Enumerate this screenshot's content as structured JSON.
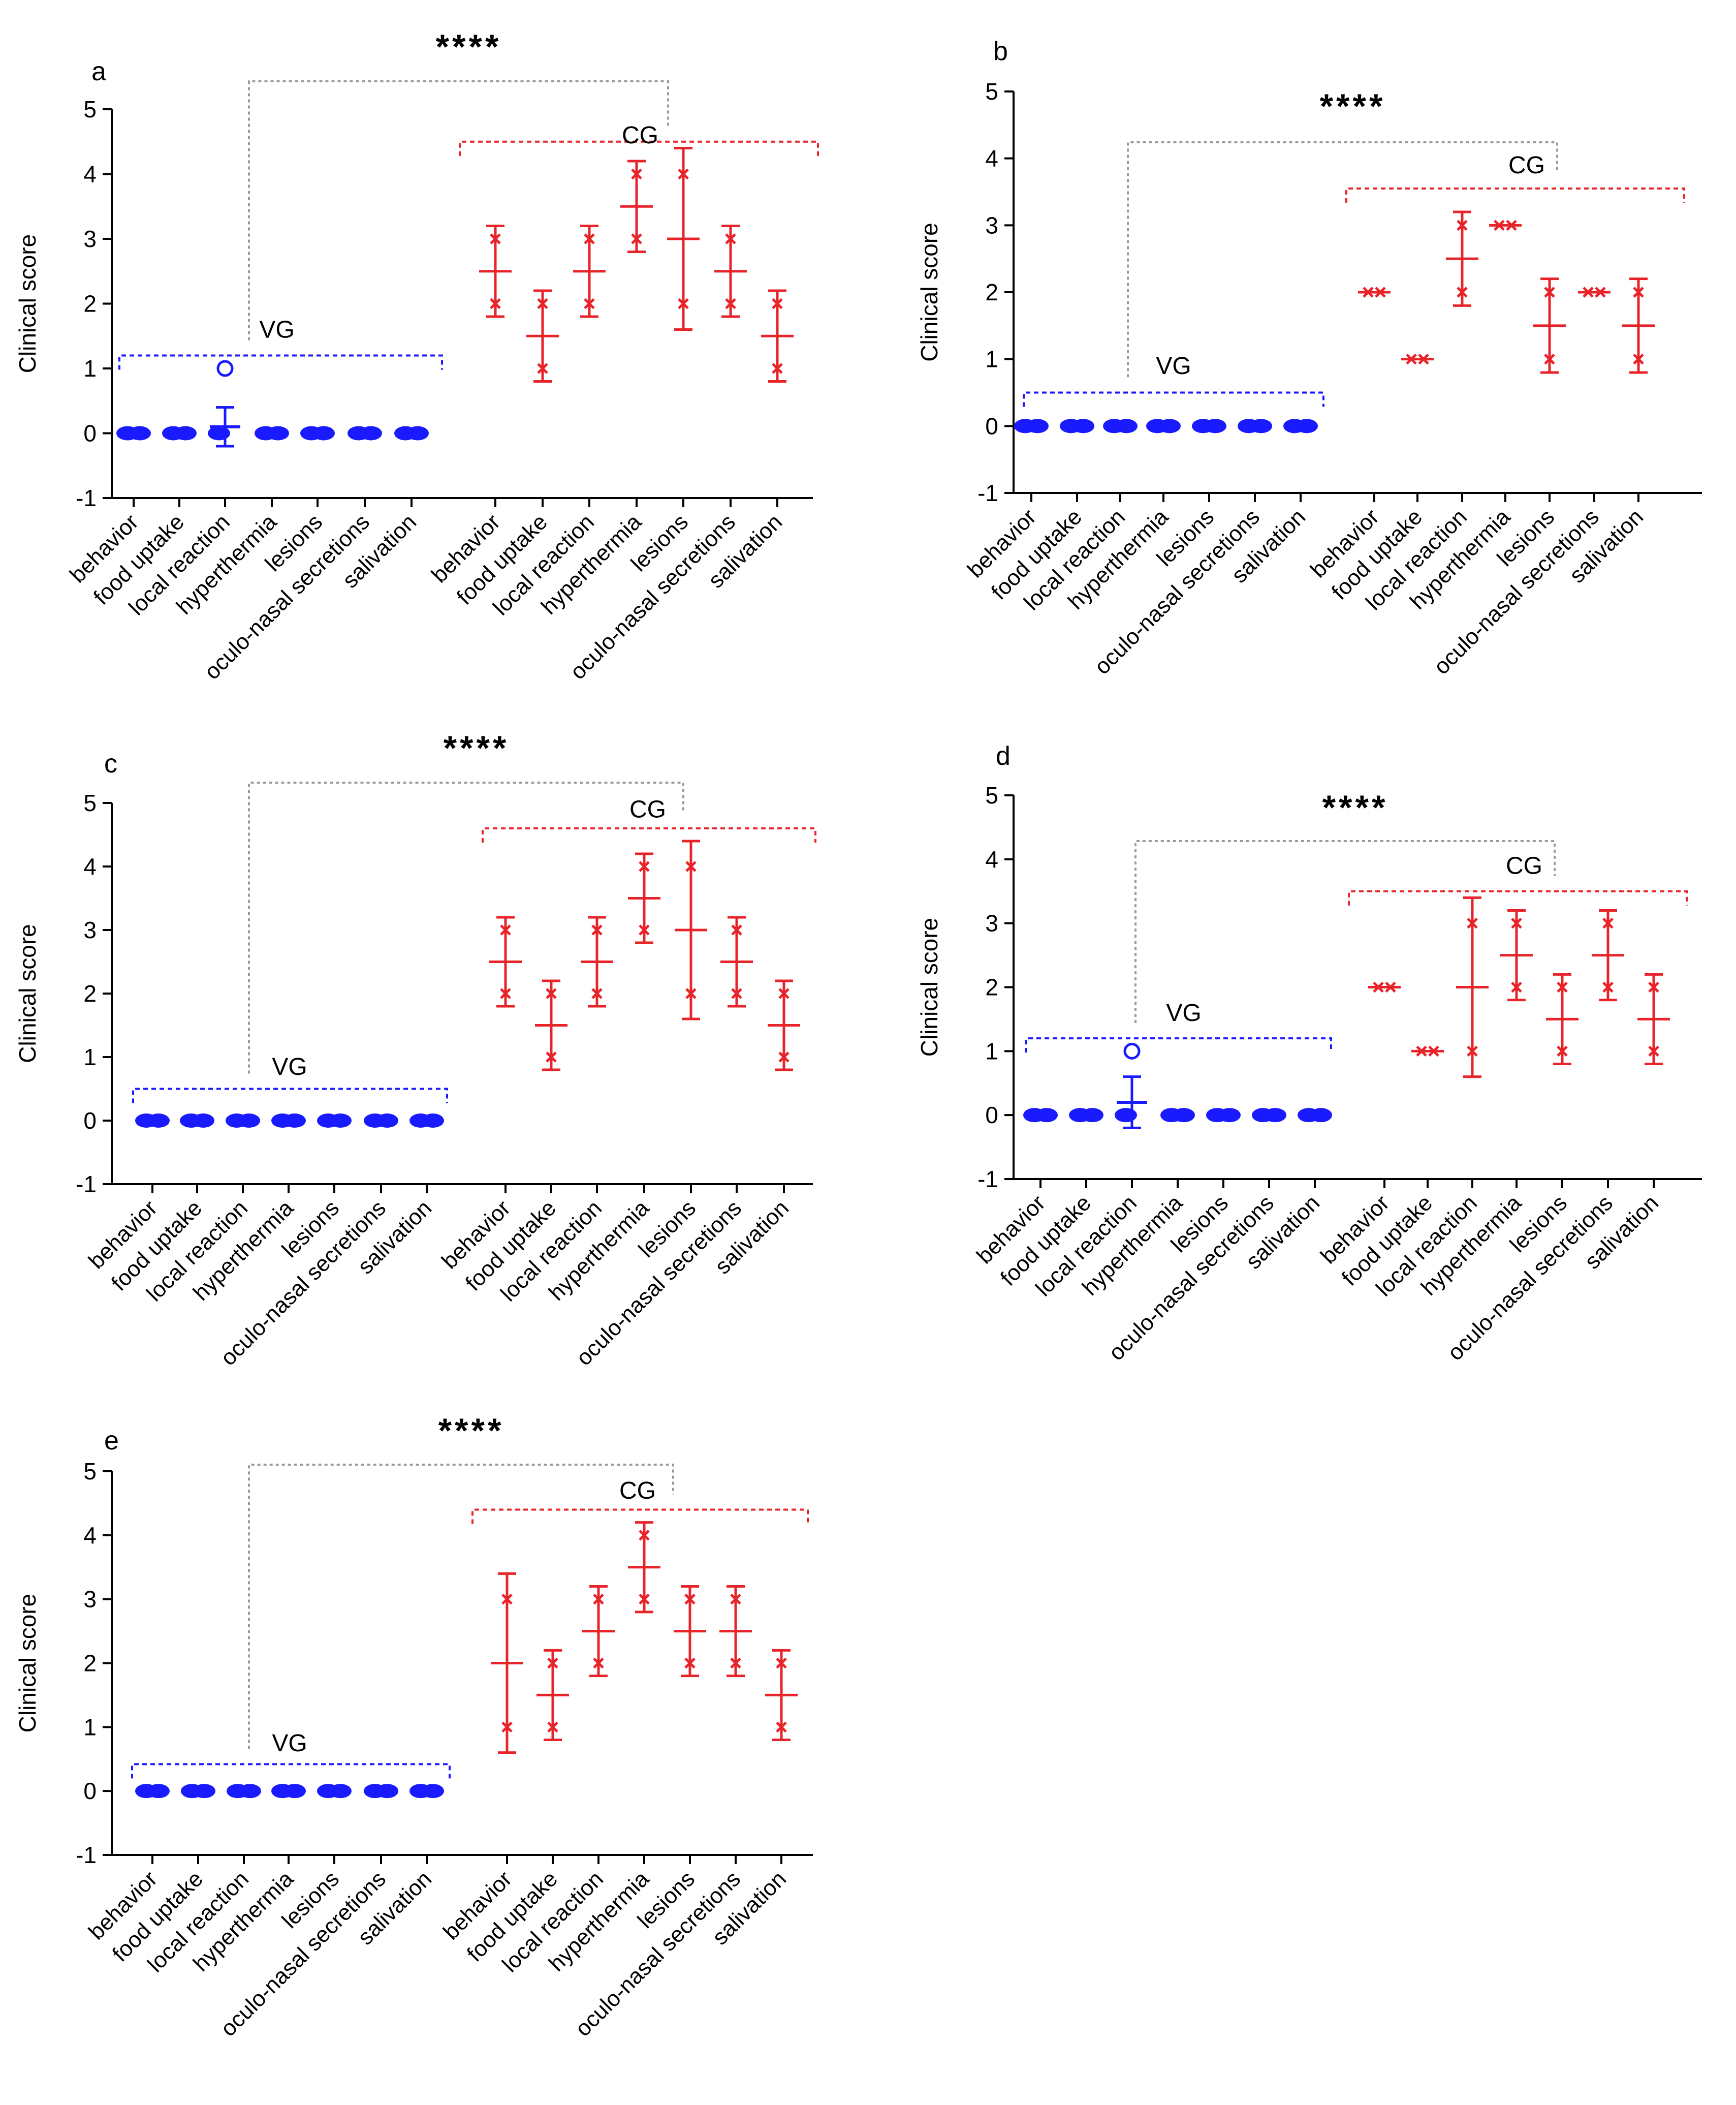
{
  "chart_data": [
    {
      "panel": "a",
      "type": "scatter",
      "ylabel": "Clinical score",
      "ylim": [
        -1,
        5
      ],
      "yticks": [
        -1,
        0,
        1,
        2,
        3,
        4,
        5
      ],
      "categories": [
        "behavior",
        "food uptake",
        "local reaction",
        "hyperthermia",
        "lesions",
        "oculo-nasal secretions",
        "salivation"
      ],
      "significance": "****",
      "colors": {
        "VG": "#1a1aff",
        "CG": "#e8242a",
        "bracket": "#9a9a9a"
      },
      "series": [
        {
          "name": "VG",
          "mean": [
            0,
            0,
            0.1,
            0,
            0,
            0,
            0
          ],
          "sd": [
            0,
            0,
            0.3,
            0,
            0,
            0,
            0
          ],
          "points": [
            [
              0,
              0
            ],
            [
              0,
              0
            ],
            [
              0,
              1
            ],
            [
              0,
              0
            ],
            [
              0,
              0
            ],
            [
              0,
              0
            ],
            [
              0,
              0
            ]
          ]
        },
        {
          "name": "CG",
          "mean": [
            2.5,
            1.5,
            2.5,
            3.5,
            3,
            2.5,
            1.5
          ],
          "sd": [
            0.7,
            0.7,
            0.7,
            0.7,
            1.4,
            0.7,
            0.7
          ],
          "points": [
            [
              2,
              3
            ],
            [
              1,
              2
            ],
            [
              2,
              3
            ],
            [
              3,
              4
            ],
            [
              2,
              4
            ],
            [
              2,
              3
            ],
            [
              1,
              2
            ]
          ]
        }
      ]
    },
    {
      "panel": "b",
      "type": "scatter",
      "ylabel": "Clinical score",
      "ylim": [
        -1,
        5
      ],
      "yticks": [
        -1,
        0,
        1,
        2,
        3,
        4,
        5
      ],
      "categories": [
        "behavior",
        "food uptake",
        "local reaction",
        "hyperthermia",
        "lesions",
        "oculo-nasal secretions",
        "salivation"
      ],
      "significance": "****",
      "colors": {
        "VG": "#1a1aff",
        "CG": "#e8242a",
        "bracket": "#9a9a9a"
      },
      "series": [
        {
          "name": "VG",
          "mean": [
            0,
            0,
            0,
            0,
            0,
            0,
            0
          ],
          "sd": [
            0,
            0,
            0,
            0,
            0,
            0,
            0
          ],
          "points": [
            [
              0,
              0
            ],
            [
              0,
              0
            ],
            [
              0,
              0
            ],
            [
              0,
              0
            ],
            [
              0,
              0
            ],
            [
              0,
              0
            ],
            [
              0,
              0
            ]
          ]
        },
        {
          "name": "CG",
          "mean": [
            2,
            1,
            2.5,
            3,
            1.5,
            2,
            1.5
          ],
          "sd": [
            0,
            0,
            0.7,
            0,
            0.7,
            0,
            0.7
          ],
          "points": [
            [
              2,
              2
            ],
            [
              1,
              1
            ],
            [
              2,
              3
            ],
            [
              3,
              3
            ],
            [
              1,
              2
            ],
            [
              2,
              2
            ],
            [
              1,
              2
            ]
          ]
        }
      ]
    },
    {
      "panel": "c",
      "type": "scatter",
      "ylabel": "Clinical score",
      "ylim": [
        -1,
        5
      ],
      "yticks": [
        -1,
        0,
        1,
        2,
        3,
        4,
        5
      ],
      "categories": [
        "behavior",
        "food uptake",
        "local reaction",
        "hyperthermia",
        "lesions",
        "oculo-nasal secretions",
        "salivation"
      ],
      "significance": "****",
      "colors": {
        "VG": "#1a1aff",
        "CG": "#e8242a",
        "bracket": "#9a9a9a"
      },
      "series": [
        {
          "name": "VG",
          "mean": [
            0,
            0,
            0,
            0,
            0,
            0,
            0
          ],
          "sd": [
            0,
            0,
            0,
            0,
            0,
            0,
            0
          ],
          "points": [
            [
              0,
              0
            ],
            [
              0,
              0
            ],
            [
              0,
              0
            ],
            [
              0,
              0
            ],
            [
              0,
              0
            ],
            [
              0,
              0
            ],
            [
              0,
              0
            ]
          ]
        },
        {
          "name": "CG",
          "mean": [
            2.5,
            1.5,
            2.5,
            3.5,
            3,
            2.5,
            1.5
          ],
          "sd": [
            0.7,
            0.7,
            0.7,
            0.7,
            1.4,
            0.7,
            0.7
          ],
          "points": [
            [
              2,
              3
            ],
            [
              1,
              2
            ],
            [
              2,
              3
            ],
            [
              3,
              4
            ],
            [
              2,
              4
            ],
            [
              2,
              3
            ],
            [
              1,
              2
            ]
          ]
        }
      ]
    },
    {
      "panel": "d",
      "type": "scatter",
      "ylabel": "Clinical score",
      "ylim": [
        -1,
        5
      ],
      "yticks": [
        -1,
        0,
        1,
        2,
        3,
        4,
        5
      ],
      "categories": [
        "behavior",
        "food uptake",
        "local reaction",
        "hyperthermia",
        "lesions",
        "oculo-nasal secretions",
        "salivation"
      ],
      "significance": "****",
      "colors": {
        "VG": "#1a1aff",
        "CG": "#e8242a",
        "bracket": "#9a9a9a"
      },
      "series": [
        {
          "name": "VG",
          "mean": [
            0,
            0,
            0.2,
            0,
            0,
            0,
            0
          ],
          "sd": [
            0,
            0,
            0.4,
            0,
            0,
            0,
            0
          ],
          "points": [
            [
              0,
              0
            ],
            [
              0,
              0
            ],
            [
              0,
              1
            ],
            [
              0,
              0
            ],
            [
              0,
              0
            ],
            [
              0,
              0
            ],
            [
              0,
              0
            ]
          ]
        },
        {
          "name": "CG",
          "mean": [
            2,
            1,
            2,
            2.5,
            1.5,
            2.5,
            1.5
          ],
          "sd": [
            0,
            0,
            1.4,
            0.7,
            0.7,
            0.7,
            0.7
          ],
          "points": [
            [
              2,
              2
            ],
            [
              1,
              1
            ],
            [
              1,
              3
            ],
            [
              2,
              3
            ],
            [
              1,
              2
            ],
            [
              2,
              3
            ],
            [
              1,
              2
            ]
          ]
        }
      ]
    },
    {
      "panel": "e",
      "type": "scatter",
      "ylabel": "Clinical score",
      "ylim": [
        -1,
        5
      ],
      "yticks": [
        -1,
        0,
        1,
        2,
        3,
        4,
        5
      ],
      "categories": [
        "behavior",
        "food uptake",
        "local reaction",
        "hyperthermia",
        "lesions",
        "oculo-nasal secretions",
        "salivation"
      ],
      "significance": "****",
      "colors": {
        "VG": "#1a1aff",
        "CG": "#e8242a",
        "bracket": "#9a9a9a"
      },
      "series": [
        {
          "name": "VG",
          "mean": [
            0,
            0,
            0,
            0,
            0,
            0,
            0
          ],
          "sd": [
            0,
            0,
            0,
            0,
            0,
            0,
            0
          ],
          "points": [
            [
              0,
              0
            ],
            [
              0,
              0
            ],
            [
              0,
              0
            ],
            [
              0,
              0
            ],
            [
              0,
              0
            ],
            [
              0,
              0
            ],
            [
              0,
              0
            ]
          ]
        },
        {
          "name": "CG",
          "mean": [
            2,
            1.5,
            2.5,
            3.5,
            2.5,
            2.5,
            1.5
          ],
          "sd": [
            1.4,
            0.7,
            0.7,
            0.7,
            0.7,
            0.7,
            0.7
          ],
          "points": [
            [
              1,
              3
            ],
            [
              1,
              2
            ],
            [
              2,
              3
            ],
            [
              3,
              4
            ],
            [
              2,
              3
            ],
            [
              2,
              3
            ],
            [
              1,
              2
            ]
          ]
        }
      ]
    }
  ]
}
